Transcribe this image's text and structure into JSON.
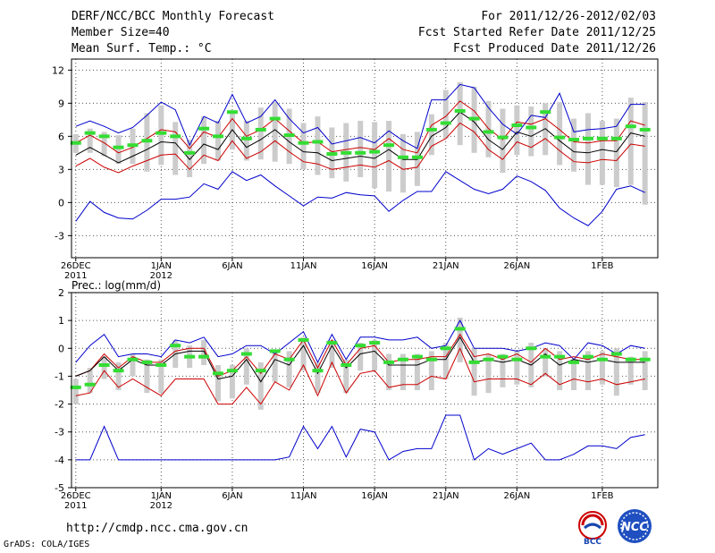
{
  "header": {
    "title": "DERF/NCC/BCC Monthly Forecast",
    "member_size": "Member Size=40",
    "variable": "Mean Surf. Temp.: °C",
    "period": "For 2011/12/26-2012/02/03",
    "started": "Fcst Started Refer Date 2011/12/25",
    "produced": "Fcst Produced Date 2011/12/26"
  },
  "footer": {
    "url": "http://cmdp.ncc.cma.gov.cn",
    "credit": "GrADS: COLA/IGES",
    "logo_bcc": "BCC",
    "logo_ncc": "NCC"
  },
  "colors": {
    "max_min": "#0000cc",
    "spread": "#cc0000",
    "mean": "#000000",
    "median": "#33dd33",
    "box": "#cccccc"
  },
  "chart_data": [
    {
      "type": "line",
      "title": "Mean Surf. Temp.: °C",
      "ylim": [
        -5,
        13
      ],
      "yticks": [
        -3,
        0,
        3,
        6,
        9,
        12
      ],
      "xticks": [
        {
          "day": 0,
          "label": "26DEC",
          "sub": "2011"
        },
        {
          "day": 6,
          "label": "1JAN",
          "sub": "2012"
        },
        {
          "day": 11,
          "label": "6JAN",
          "sub": ""
        },
        {
          "day": 16,
          "label": "11JAN",
          "sub": ""
        },
        {
          "day": 21,
          "label": "16JAN",
          "sub": ""
        },
        {
          "day": 26,
          "label": "21JAN",
          "sub": ""
        },
        {
          "day": 31,
          "label": "26JAN",
          "sub": ""
        },
        {
          "day": 37,
          "label": "1FEB",
          "sub": ""
        }
      ],
      "grid": true,
      "series": [
        {
          "name": "max",
          "values": [
            6.9,
            7.4,
            6.9,
            6.3,
            6.8,
            7.9,
            9.1,
            8.4,
            5.2,
            7.8,
            7.2,
            9.8,
            7.2,
            7.8,
            9.3,
            7.6,
            6.3,
            6.8,
            5.3,
            5.6,
            5.9,
            5.4,
            6.5,
            5.6,
            4.9,
            9.3,
            9.3,
            10.7,
            10.4,
            8.6,
            7.1,
            6.2,
            7.9,
            7.7,
            9.9,
            6.4,
            6.6,
            6.7,
            6.9,
            8.9,
            8.9
          ]
        },
        {
          "name": "p_high",
          "values": [
            5.4,
            6.1,
            5.4,
            4.5,
            5.0,
            5.8,
            6.6,
            6.4,
            4.9,
            6.4,
            5.9,
            7.6,
            6.0,
            6.6,
            7.6,
            6.5,
            5.4,
            5.5,
            4.6,
            4.8,
            5.0,
            4.8,
            5.8,
            4.8,
            4.5,
            7.0,
            7.8,
            9.2,
            8.3,
            6.7,
            5.7,
            7.3,
            7.1,
            7.6,
            6.6,
            5.5,
            5.4,
            5.6,
            5.6,
            7.4,
            7.0
          ]
        },
        {
          "name": "mean",
          "values": [
            4.3,
            5.0,
            4.3,
            3.6,
            4.2,
            4.8,
            5.5,
            5.4,
            3.9,
            5.3,
            4.8,
            6.6,
            5.0,
            5.7,
            6.6,
            5.5,
            4.6,
            4.5,
            3.8,
            4.0,
            4.2,
            4.0,
            4.8,
            3.9,
            3.9,
            6.0,
            6.8,
            8.2,
            7.3,
            5.7,
            4.8,
            6.4,
            6.0,
            6.7,
            5.6,
            4.6,
            4.5,
            4.8,
            4.6,
            6.3,
            6.0
          ]
        },
        {
          "name": "p_low",
          "values": [
            3.3,
            4.0,
            3.2,
            2.7,
            3.3,
            3.8,
            4.3,
            4.4,
            3.0,
            4.3,
            3.8,
            5.6,
            4.0,
            4.6,
            5.6,
            4.6,
            3.7,
            3.5,
            3.0,
            3.2,
            3.4,
            3.2,
            3.8,
            3.0,
            3.2,
            5.1,
            5.8,
            7.2,
            6.4,
            4.8,
            3.9,
            5.5,
            5.0,
            5.8,
            4.7,
            3.7,
            3.6,
            3.9,
            3.8,
            5.3,
            5.1
          ]
        },
        {
          "name": "min",
          "values": [
            -1.7,
            0.1,
            -0.9,
            -1.4,
            -1.5,
            -0.7,
            0.3,
            0.3,
            0.5,
            1.7,
            1.2,
            2.8,
            2.0,
            2.5,
            1.5,
            0.6,
            -0.3,
            0.5,
            0.4,
            0.9,
            0.7,
            0.6,
            -0.8,
            0.2,
            1.0,
            1.0,
            2.8,
            2.0,
            1.2,
            0.8,
            1.2,
            2.4,
            1.9,
            1.1,
            -0.5,
            -1.4,
            -2.1,
            -0.8,
            1.2,
            1.5,
            0.9
          ]
        },
        {
          "name": "median",
          "values": [
            5.4,
            6.3,
            6.0,
            5.0,
            5.2,
            5.6,
            6.3,
            6.0,
            4.5,
            6.7,
            6.0,
            8.2,
            5.8,
            6.6,
            7.6,
            6.1,
            5.4,
            5.5,
            4.4,
            4.5,
            4.5,
            4.6,
            5.2,
            4.1,
            4.1,
            6.6,
            7.2,
            8.3,
            7.6,
            6.4,
            5.9,
            7.0,
            6.8,
            8.2,
            5.9,
            5.7,
            5.8,
            5.8,
            5.8,
            6.9,
            6.6
          ]
        },
        {
          "name": "box_high",
          "values": [
            6.2,
            6.7,
            6.4,
            6.1,
            6.7,
            8.1,
            8.8,
            7.3,
            5.7,
            7.8,
            7.4,
            8.3,
            7.4,
            8.6,
            9.1,
            8.5,
            7.2,
            7.8,
            6.8,
            7.2,
            7.4,
            7.3,
            7.4,
            6.2,
            6.4,
            8.0,
            10.2,
            10.9,
            10.5,
            9.2,
            8.5,
            8.8,
            8.7,
            9.0,
            9.1,
            7.6,
            8.1,
            7.4,
            7.6,
            9.5,
            9.1
          ]
        },
        {
          "name": "box_low",
          "values": [
            4.5,
            4.5,
            4.2,
            3.5,
            3.5,
            2.8,
            3.4,
            2.5,
            2.3,
            3.5,
            3.8,
            4.8,
            3.8,
            3.9,
            3.7,
            3.5,
            3.0,
            2.5,
            2.2,
            1.9,
            2.3,
            1.3,
            1.0,
            0.9,
            1.5,
            4.3,
            5.8,
            5.2,
            4.5,
            4.1,
            2.7,
            4.3,
            4.2,
            4.3,
            3.4,
            2.8,
            1.6,
            1.6,
            1.4,
            1.6,
            -0.2
          ]
        }
      ]
    },
    {
      "type": "line",
      "title": "Prec.: log(mm/d)",
      "ylim": [
        -5,
        2
      ],
      "yticks": [
        -5,
        -4,
        -3,
        -2,
        -1,
        0,
        1,
        2
      ],
      "xticks": [
        {
          "day": 0,
          "label": "26DEC",
          "sub": "2011"
        },
        {
          "day": 6,
          "label": "1JAN",
          "sub": "2012"
        },
        {
          "day": 11,
          "label": "6JAN",
          "sub": ""
        },
        {
          "day": 16,
          "label": "11JAN",
          "sub": ""
        },
        {
          "day": 21,
          "label": "16JAN",
          "sub": ""
        },
        {
          "day": 26,
          "label": "21JAN",
          "sub": ""
        },
        {
          "day": 31,
          "label": "26JAN",
          "sub": ""
        },
        {
          "day": 37,
          "label": "1FEB",
          "sub": ""
        }
      ],
      "grid": true,
      "series": [
        {
          "name": "max",
          "values": [
            -0.5,
            0.1,
            0.5,
            -0.3,
            -0.2,
            -0.2,
            -0.3,
            0.3,
            0.2,
            0.4,
            -0.3,
            -0.2,
            0.1,
            0.1,
            -0.2,
            0.2,
            0.6,
            -0.5,
            0.5,
            -0.4,
            0.4,
            0.4,
            0.3,
            0.3,
            0.4,
            0.0,
            0.1,
            1.0,
            0.0,
            0.0,
            0.0,
            -0.1,
            0.0,
            0.2,
            0.1,
            -0.4,
            0.2,
            0.1,
            -0.2,
            0.1,
            0.0
          ]
        },
        {
          "name": "p_high",
          "values": [
            -1.0,
            -0.8,
            -0.2,
            -0.7,
            -0.3,
            -0.5,
            -0.5,
            -0.1,
            0.0,
            0.0,
            -1.0,
            -0.8,
            -0.3,
            -0.9,
            -0.2,
            -0.4,
            0.3,
            -0.7,
            0.3,
            -0.6,
            0.0,
            0.1,
            -0.5,
            -0.4,
            -0.4,
            -0.3,
            -0.3,
            0.5,
            -0.3,
            -0.2,
            -0.4,
            -0.2,
            -0.5,
            0.0,
            -0.4,
            -0.3,
            -0.4,
            -0.2,
            -0.3,
            -0.4,
            -0.4
          ]
        },
        {
          "name": "mean",
          "values": [
            -1.0,
            -0.8,
            -0.3,
            -0.8,
            -0.4,
            -0.6,
            -0.6,
            -0.2,
            -0.1,
            -0.1,
            -1.1,
            -1.0,
            -0.4,
            -1.2,
            -0.4,
            -0.6,
            0.1,
            -0.9,
            0.1,
            -0.7,
            -0.2,
            -0.1,
            -0.6,
            -0.6,
            -0.6,
            -0.4,
            -0.4,
            0.4,
            -0.5,
            -0.4,
            -0.5,
            -0.4,
            -0.6,
            -0.2,
            -0.6,
            -0.4,
            -0.5,
            -0.4,
            -0.5,
            -0.5,
            -0.5
          ]
        },
        {
          "name": "p_low",
          "values": [
            -1.7,
            -1.6,
            -0.8,
            -1.4,
            -1.1,
            -1.4,
            -1.7,
            -1.1,
            -1.1,
            -1.1,
            -2.0,
            -2.0,
            -1.4,
            -2.0,
            -1.2,
            -1.5,
            -0.6,
            -1.7,
            -0.5,
            -1.6,
            -0.9,
            -0.8,
            -1.4,
            -1.3,
            -1.3,
            -1.0,
            -1.1,
            0.0,
            -1.2,
            -1.1,
            -1.1,
            -1.1,
            -1.3,
            -0.9,
            -1.3,
            -1.1,
            -1.2,
            -1.1,
            -1.3,
            -1.2,
            -1.1
          ]
        },
        {
          "name": "min",
          "values": [
            -4.0,
            -4.0,
            -2.8,
            -4.0,
            -4.0,
            -4.0,
            -4.0,
            -4.0,
            -4.0,
            -4.0,
            -4.0,
            -4.0,
            -4.0,
            -4.0,
            -4.0,
            -3.9,
            -2.8,
            -3.6,
            -2.8,
            -3.9,
            -2.9,
            -3.0,
            -4.0,
            -3.7,
            -3.6,
            -3.6,
            -2.4,
            -2.4,
            -4.0,
            -3.6,
            -3.8,
            -3.6,
            -3.4,
            -4.0,
            -4.0,
            -3.8,
            -3.5,
            -3.5,
            -3.6,
            -3.2,
            -3.1
          ]
        },
        {
          "name": "median",
          "values": [
            -1.4,
            -1.3,
            -0.6,
            -0.8,
            -0.4,
            -0.5,
            -0.6,
            0.1,
            -0.3,
            -0.3,
            -0.9,
            -0.8,
            -0.2,
            -0.8,
            -0.1,
            -0.4,
            0.3,
            -0.8,
            0.2,
            -0.6,
            0.1,
            0.2,
            -0.5,
            -0.4,
            -0.3,
            -0.4,
            0.0,
            0.7,
            -0.5,
            -0.4,
            -0.3,
            -0.4,
            0.0,
            -0.3,
            -0.3,
            -0.5,
            -0.3,
            -0.4,
            -0.2,
            -0.4,
            -0.4
          ]
        },
        {
          "name": "box_high",
          "values": [
            -1.1,
            -0.7,
            -0.3,
            -0.5,
            -0.2,
            -0.4,
            -0.4,
            0.3,
            0.1,
            0.3,
            -0.6,
            -0.6,
            0.0,
            -0.5,
            -0.1,
            -0.1,
            0.4,
            -0.5,
            0.3,
            -0.4,
            0.2,
            0.3,
            -0.2,
            -0.2,
            -0.2,
            -0.1,
            0.2,
            1.1,
            0.0,
            -0.2,
            -0.2,
            -0.1,
            0.2,
            0.0,
            -0.1,
            -0.4,
            -0.1,
            -0.1,
            0.0,
            -0.3,
            -0.1
          ]
        },
        {
          "name": "box_low",
          "values": [
            -2.0,
            -1.6,
            -1.1,
            -1.5,
            -1.0,
            -1.6,
            -1.6,
            -0.7,
            -0.7,
            -0.6,
            -1.9,
            -1.8,
            -1.3,
            -2.2,
            -1.2,
            -1.4,
            -0.8,
            -1.6,
            -0.7,
            -1.6,
            -0.8,
            -0.8,
            -1.5,
            -1.5,
            -1.5,
            -1.5,
            -1.1,
            -0.5,
            -1.7,
            -1.6,
            -1.4,
            -1.3,
            -1.4,
            -1.0,
            -1.5,
            -1.5,
            -1.5,
            -1.3,
            -1.7,
            -1.3,
            -1.5
          ]
        }
      ]
    }
  ]
}
